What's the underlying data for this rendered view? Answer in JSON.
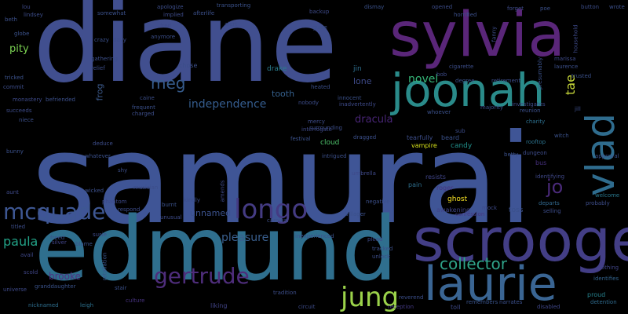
{
  "words": [
    {
      "text": "samurai",
      "color": "#3f5596"
    },
    {
      "text": "diane",
      "color": "#414f8f"
    },
    {
      "text": "edmund",
      "color": "#2f6f8e"
    },
    {
      "text": "sylvia",
      "color": "#5a2679"
    },
    {
      "text": "scrooge",
      "color": "#433e86"
    },
    {
      "text": "joonah",
      "color": "#2a8b8a"
    },
    {
      "text": "laurie",
      "color": "#3a6593"
    },
    {
      "text": "vlad",
      "color": "#2f6c8e"
    },
    {
      "text": "longo",
      "color": "#443b83"
    },
    {
      "text": "mcquade",
      "color": "#3e5793"
    },
    {
      "text": "jung",
      "color": "#9bd34a"
    },
    {
      "text": "gertrude",
      "color": "#4e2d7b"
    },
    {
      "text": "independence",
      "color": "#355d8f"
    },
    {
      "text": "collector",
      "color": "#2fa389"
    },
    {
      "text": "meg",
      "color": "#365c8d"
    },
    {
      "text": "jo",
      "color": "#4a2a7a"
    },
    {
      "text": "tae",
      "color": "#c8d93a"
    },
    {
      "text": "paula",
      "color": "#22a186"
    },
    {
      "text": "pleasure",
      "color": "#3a5f8e"
    },
    {
      "text": "brooke",
      "color": "#4e3181"
    },
    {
      "text": "novel",
      "color": "#35b778"
    },
    {
      "text": "pity",
      "color": "#7ad151"
    },
    {
      "text": "dracula",
      "color": "#482576"
    },
    {
      "text": "unnamed",
      "color": "#3b518b"
    },
    {
      "text": "tooth",
      "color": "#35608d"
    },
    {
      "text": "lone",
      "color": "#3e4a89"
    },
    {
      "text": "meg",
      "color": "#365c8d"
    },
    {
      "text": "chose",
      "color": "#3c4f8a"
    },
    {
      "text": "frog",
      "color": "#3c5a8b"
    },
    {
      "text": "drake",
      "color": "#2b7d8e"
    },
    {
      "text": "jin",
      "color": "#2e6e8e"
    },
    {
      "text": "cloud",
      "color": "#4ec36b"
    },
    {
      "text": "candy",
      "color": "#21918c"
    },
    {
      "text": "tearfully",
      "color": "#3d4e8a"
    },
    {
      "text": "beard",
      "color": "#3b528b"
    },
    {
      "text": "vampire",
      "color": "#d7e219"
    },
    {
      "text": "umbrella",
      "color": "#3f4a8a"
    },
    {
      "text": "roger",
      "color": "#46337e"
    },
    {
      "text": "resists",
      "color": "#404588"
    },
    {
      "text": "pain",
      "color": "#2e6f8e"
    },
    {
      "text": "ghost",
      "color": "#fde725"
    },
    {
      "text": "awakening",
      "color": "#414487"
    },
    {
      "text": "toss",
      "color": "#3b518b"
    },
    {
      "text": "mock",
      "color": "#3e4989"
    },
    {
      "text": "confession",
      "color": "#453882"
    },
    {
      "text": "selling",
      "color": "#3d4d8a"
    },
    {
      "text": "departs",
      "color": "#31688e"
    },
    {
      "text": "dungeon",
      "color": "#3e4c8a"
    },
    {
      "text": "rooftop",
      "color": "#2c738e"
    },
    {
      "text": "witch",
      "color": "#3b528b"
    },
    {
      "text": "charity",
      "color": "#2d708e"
    },
    {
      "text": "bus",
      "color": "#46307e"
    },
    {
      "text": "identifying",
      "color": "#3f4889"
    },
    {
      "text": "probably",
      "color": "#3d4d8a"
    },
    {
      "text": "approval",
      "color": "#3b518b"
    },
    {
      "text": "welcome",
      "color": "#2a788e"
    },
    {
      "text": "proud",
      "color": "#26828e"
    },
    {
      "text": "clothing",
      "color": "#404588"
    },
    {
      "text": "identifies",
      "color": "#33638d"
    },
    {
      "text": "detention",
      "color": "#2f6b8e"
    },
    {
      "text": "narrates",
      "color": "#3c508b"
    },
    {
      "text": "disabled",
      "color": "#3f4788"
    },
    {
      "text": "remembers",
      "color": "#3a548c"
    },
    {
      "text": "toll",
      "color": "#3e4a89"
    },
    {
      "text": "reception",
      "color": "#443983"
    },
    {
      "text": "reverend",
      "color": "#3c4f8a"
    },
    {
      "text": "circuit",
      "color": "#3e4c8a"
    },
    {
      "text": "tradition",
      "color": "#3d4e8a"
    },
    {
      "text": "liking",
      "color": "#414487"
    },
    {
      "text": "culture",
      "color": "#46327e"
    },
    {
      "text": "stair",
      "color": "#3b518b"
    },
    {
      "text": "leigh",
      "color": "#2d718e"
    },
    {
      "text": "nicknamed",
      "color": "#2e6e8e"
    },
    {
      "text": "granddaughter",
      "color": "#3a538b"
    },
    {
      "text": "universe",
      "color": "#3e4a89"
    },
    {
      "text": "scold",
      "color": "#404688"
    },
    {
      "text": "avail",
      "color": "#3f4788"
    },
    {
      "text": "titled",
      "color": "#3d4e8a"
    },
    {
      "text": "freed",
      "color": "#3c508b"
    },
    {
      "text": "blame",
      "color": "#3a538b"
    },
    {
      "text": "silver",
      "color": "#414487"
    },
    {
      "text": "retaliation",
      "color": "#39568c"
    },
    {
      "text": "susie",
      "color": "#3e4a89"
    },
    {
      "text": "wicked",
      "color": "#3c508b"
    },
    {
      "text": "respond",
      "color": "#3d4d8a"
    },
    {
      "text": "burnt",
      "color": "#3b528b"
    },
    {
      "text": "unusual",
      "color": "#3e4c8a"
    },
    {
      "text": "kindly",
      "color": "#3c4f8a"
    },
    {
      "text": "amends",
      "color": "#3e4a89"
    },
    {
      "text": "carnival",
      "color": "#3d4e8a"
    },
    {
      "text": "inexperienced",
      "color": "#3b518b"
    },
    {
      "text": "plead",
      "color": "#3e4a89"
    },
    {
      "text": "tracked",
      "color": "#3c508b"
    },
    {
      "text": "unlock",
      "color": "#3d4d8a"
    },
    {
      "text": "villager",
      "color": "#3b518b"
    },
    {
      "text": "negative",
      "color": "#3c508b"
    },
    {
      "text": "musician",
      "color": "#3d4e8a"
    },
    {
      "text": "phantom",
      "color": "#3e4a89"
    },
    {
      "text": "shy",
      "color": "#3c4f8a"
    },
    {
      "text": "deduce",
      "color": "#3d4d8a"
    },
    {
      "text": "whatever",
      "color": "#3b518b"
    },
    {
      "text": "intrigued",
      "color": "#3c508b"
    },
    {
      "text": "interrogate",
      "color": "#3e4a89"
    },
    {
      "text": "festival",
      "color": "#3b528b"
    },
    {
      "text": "surrounding",
      "color": "#3d4e8a"
    },
    {
      "text": "dragged",
      "color": "#3c508b"
    },
    {
      "text": "mercy",
      "color": "#3e4c8a"
    },
    {
      "text": "whoever",
      "color": "#3b518b"
    },
    {
      "text": "sub",
      "color": "#3d4d8a"
    },
    {
      "text": "betty",
      "color": "#3b518b"
    },
    {
      "text": "reunion",
      "color": "#3c508b"
    },
    {
      "text": "investigates",
      "color": "#3e4a89"
    },
    {
      "text": "jill",
      "color": "#3d4e8a"
    },
    {
      "text": "majority",
      "color": "#3c4f8a"
    },
    {
      "text": "degree",
      "color": "#3b528b"
    },
    {
      "text": "retirement",
      "color": "#3d4d8a"
    },
    {
      "text": "marissa",
      "color": "#3e4a89"
    },
    {
      "text": "laurence",
      "color": "#3c508b"
    },
    {
      "text": "trusted",
      "color": "#3b518b"
    },
    {
      "text": "cigarette",
      "color": "#3d4e8a"
    },
    {
      "text": "bob",
      "color": "#3e4c8a"
    },
    {
      "text": "heated",
      "color": "#3c508b"
    },
    {
      "text": "innocent",
      "color": "#3b528b"
    },
    {
      "text": "inadvertently",
      "color": "#3e4a89"
    },
    {
      "text": "nobody",
      "color": "#3d4d8a"
    },
    {
      "text": "caine",
      "color": "#3c4f8a"
    },
    {
      "text": "frequent",
      "color": "#3b518b"
    },
    {
      "text": "charged",
      "color": "#3d4e8a"
    },
    {
      "text": "monastery",
      "color": "#3e4a89"
    },
    {
      "text": "befriended",
      "color": "#3c508b"
    },
    {
      "text": "tricked",
      "color": "#3b528b"
    },
    {
      "text": "commit",
      "color": "#3d4d8a"
    },
    {
      "text": "succeeds",
      "color": "#3e4c8a"
    },
    {
      "text": "niece",
      "color": "#3c508b"
    },
    {
      "text": "bunny",
      "color": "#3b518b"
    },
    {
      "text": "aunt",
      "color": "#3e4a89"
    },
    {
      "text": "relief",
      "color": "#3d4e8a"
    },
    {
      "text": "gathering",
      "color": "#3c4f8a"
    },
    {
      "text": "globe",
      "color": "#3b528b"
    },
    {
      "text": "lindsey",
      "color": "#3d4d8a"
    },
    {
      "text": "lou",
      "color": "#3e4a89"
    },
    {
      "text": "beth",
      "color": "#3c508b"
    },
    {
      "text": "somewhat",
      "color": "#3b518b"
    },
    {
      "text": "apologize",
      "color": "#3d4e8a"
    },
    {
      "text": "implied",
      "color": "#3e4c8a"
    },
    {
      "text": "afterlife",
      "color": "#3c508b"
    },
    {
      "text": "transporting",
      "color": "#3b528b"
    },
    {
      "text": "alert",
      "color": "#3d4d8a"
    },
    {
      "text": "fred",
      "color": "#3e4a89"
    },
    {
      "text": "anymore",
      "color": "#3c4f8a"
    },
    {
      "text": "crazy",
      "color": "#3b518b"
    },
    {
      "text": "davy",
      "color": "#3d4e8a"
    },
    {
      "text": "guise",
      "color": "#3c508b"
    },
    {
      "text": "backup",
      "color": "#3e4a89"
    },
    {
      "text": "dismay",
      "color": "#3b528b"
    },
    {
      "text": "opened",
      "color": "#3d4d8a"
    },
    {
      "text": "horrified",
      "color": "#3c4f8a"
    },
    {
      "text": "forget",
      "color": "#3e4c8a"
    },
    {
      "text": "poe",
      "color": "#3b518b"
    },
    {
      "text": "button",
      "color": "#3d4e8a"
    },
    {
      "text": "wrote",
      "color": "#3c508b"
    },
    {
      "text": "household",
      "color": "#3e4a89"
    },
    {
      "text": "presumably",
      "color": "#3b528b"
    },
    {
      "text": "fanny",
      "color": "#3d4d8a"
    }
  ]
}
